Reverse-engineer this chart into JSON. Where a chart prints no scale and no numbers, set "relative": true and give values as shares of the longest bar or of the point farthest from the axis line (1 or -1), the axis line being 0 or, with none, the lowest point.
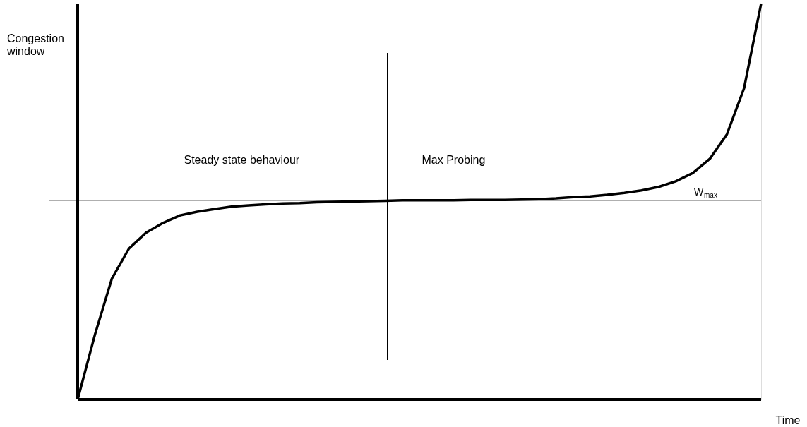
{
  "chart_data": {
    "type": "line",
    "relative": true,
    "xlabel": "Time",
    "ylabel": "Congestion window",
    "categories": [
      null,
      null,
      null,
      null,
      null,
      null,
      null,
      null,
      null,
      null,
      null,
      null,
      null,
      null,
      null,
      null,
      null,
      null,
      null,
      null,
      null,
      null,
      null,
      null,
      null,
      null,
      null,
      null,
      null,
      null,
      null,
      null,
      null,
      null,
      null,
      null,
      null,
      null,
      null,
      null,
      null
    ],
    "series": [
      {
        "color": "#000000",
        "values": [
          0,
          0.162,
          0.305,
          0.381,
          0.421,
          0.446,
          0.465,
          0.474,
          0.481,
          0.487,
          0.49,
          0.493,
          0.495,
          0.496,
          0.498,
          0.499,
          0.5,
          0.501,
          0.502,
          0.503,
          0.503,
          0.503,
          0.503,
          0.504,
          0.504,
          0.504,
          0.505,
          0.506,
          0.508,
          0.511,
          0.513,
          0.517,
          0.522,
          0.528,
          0.537,
          0.551,
          0.572,
          0.608,
          0.67,
          0.786,
          1.0
        ]
      }
    ],
    "ref_lines": [
      {
        "axis": "y",
        "value": 0.503,
        "label": "W$_{max}$",
        "color": "#000000"
      }
    ],
    "annotations": [
      "Steady state behaviour",
      "Max Probing"
    ],
    "marker": "none",
    "line_style": "solid"
  }
}
